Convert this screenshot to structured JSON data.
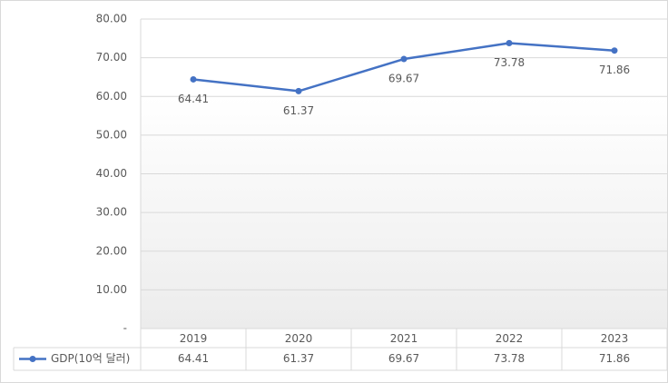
{
  "chart_data": {
    "type": "line",
    "categories": [
      "2019",
      "2020",
      "2021",
      "2022",
      "2023"
    ],
    "series": [
      {
        "name": "GDP(10억 달러)",
        "color": "#4472c4",
        "values": [
          64.41,
          61.37,
          69.67,
          73.78,
          71.86
        ]
      }
    ],
    "ylim": [
      0,
      80
    ],
    "yticks": [
      {
        "value": 0,
        "label": "-"
      },
      {
        "value": 10,
        "label": "10.00"
      },
      {
        "value": 20,
        "label": "20.00"
      },
      {
        "value": 30,
        "label": "30.00"
      },
      {
        "value": 40,
        "label": "40.00"
      },
      {
        "value": 50,
        "label": "50.00"
      },
      {
        "value": 60,
        "label": "60.00"
      },
      {
        "value": 70,
        "label": "70.00"
      },
      {
        "value": 80,
        "label": "80.00"
      }
    ],
    "grid": true,
    "legend": "bottom"
  }
}
